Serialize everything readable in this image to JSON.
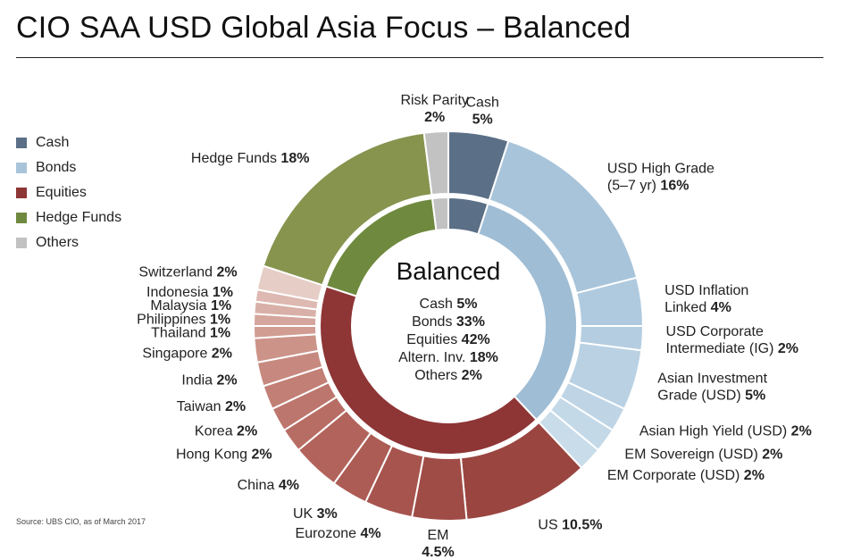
{
  "title": "CIO SAA USD Global Asia Focus – Balanced",
  "source": "Source: UBS CIO, as of March 2017",
  "legend": [
    {
      "label": "Cash",
      "color": "#5b6f86"
    },
    {
      "label": "Bonds",
      "color": "#a8c4da"
    },
    {
      "label": "Equities",
      "color": "#8e3535"
    },
    {
      "label": "Hedge Funds",
      "color": "#6f8a3e"
    },
    {
      "label": "Others",
      "color": "#c2c2c2"
    }
  ],
  "center": {
    "title": "Balanced",
    "lines": [
      {
        "name": "Cash",
        "value": "5%"
      },
      {
        "name": "Bonds",
        "value": "33%"
      },
      {
        "name": "Equities",
        "value": "42%"
      },
      {
        "name": "Altern. Inv.",
        "value": "18%"
      },
      {
        "name": "Others",
        "value": "2%"
      }
    ]
  },
  "chart_data": {
    "type": "pie",
    "inner_ring": [
      {
        "name": "Cash",
        "value": 5,
        "color": "#5b6f86"
      },
      {
        "name": "Bonds",
        "value": 33,
        "color": "#9fbdd4"
      },
      {
        "name": "Equities",
        "value": 42,
        "color": "#8e3535"
      },
      {
        "name": "Hedge Funds",
        "value": 18,
        "color": "#6f8a3e"
      },
      {
        "name": "Others",
        "value": 2,
        "color": "#c2c2c2"
      }
    ],
    "outer_ring": [
      {
        "name": "Cash",
        "label": "Cash",
        "value": 5,
        "value_label": "5%",
        "color": "#5b6f86"
      },
      {
        "name": "USD High Grade (5–7 yr)",
        "label": [
          "USD High Grade",
          "(5–7 yr)"
        ],
        "value": 16,
        "value_label": "16%",
        "color": "#a8c4da"
      },
      {
        "name": "USD Inflation Linked",
        "label": [
          "USD Inflation",
          "Linked"
        ],
        "value": 4,
        "value_label": "4%",
        "color": "#afcadf"
      },
      {
        "name": "USD Corporate Intermediate (IG)",
        "label": [
          "USD Corporate",
          "Intermediate (IG)"
        ],
        "value": 2,
        "value_label": "2%",
        "color": "#b4cde1"
      },
      {
        "name": "Asian Investment Grade (USD)",
        "label": [
          "Asian Investment",
          "Grade (USD)"
        ],
        "value": 5,
        "value_label": "5%",
        "color": "#b9d1e3"
      },
      {
        "name": "Asian High Yield (USD)",
        "label": [
          "Asian High Yield (USD)"
        ],
        "value": 2,
        "value_label": "2%",
        "color": "#bfd5e6"
      },
      {
        "name": "EM Sovereign (USD)",
        "label": [
          "EM Sovereign (USD)"
        ],
        "value": 2,
        "value_label": "2%",
        "color": "#c4d9e8"
      },
      {
        "name": "EM Corporate (USD)",
        "label": [
          "EM Corporate (USD)"
        ],
        "value": 2,
        "value_label": "2%",
        "color": "#c9dcea"
      },
      {
        "name": "US",
        "label": [
          "US"
        ],
        "value": 10.5,
        "value_label": "10.5%",
        "color": "#9a4540"
      },
      {
        "name": "EM",
        "label": [
          "EM"
        ],
        "value": 4.5,
        "value_label": "4.5%",
        "color": "#a04c46"
      },
      {
        "name": "Eurozone",
        "label": [
          "Eurozone"
        ],
        "value": 4,
        "value_label": "4%",
        "color": "#a6544d"
      },
      {
        "name": "UK",
        "label": [
          "UK"
        ],
        "value": 3,
        "value_label": "3%",
        "color": "#ac5c54"
      },
      {
        "name": "China",
        "label": [
          "China"
        ],
        "value": 4,
        "value_label": "4%",
        "color": "#b2645c"
      },
      {
        "name": "Hong Kong",
        "label": [
          "Hong Kong"
        ],
        "value": 2,
        "value_label": "2%",
        "color": "#b86d64"
      },
      {
        "name": "Korea",
        "label": [
          "Korea"
        ],
        "value": 2,
        "value_label": "2%",
        "color": "#bd766d"
      },
      {
        "name": "Taiwan",
        "label": [
          "Taiwan"
        ],
        "value": 2,
        "value_label": "2%",
        "color": "#c27f76"
      },
      {
        "name": "India",
        "label": [
          "India"
        ],
        "value": 2,
        "value_label": "2%",
        "color": "#c7897f"
      },
      {
        "name": "Singapore",
        "label": [
          "Singapore"
        ],
        "value": 2,
        "value_label": "2%",
        "color": "#cc9389"
      },
      {
        "name": "Thailand",
        "label": [
          "Thailand"
        ],
        "value": 1,
        "value_label": "1%",
        "color": "#d19d93"
      },
      {
        "name": "Philippines",
        "label": [
          "Philippines"
        ],
        "value": 1,
        "value_label": "1%",
        "color": "#d5a69d"
      },
      {
        "name": "Malaysia",
        "label": [
          "Malaysia"
        ],
        "value": 1,
        "value_label": "1%",
        "color": "#d9b0a7"
      },
      {
        "name": "Indonesia",
        "label": [
          "Indonesia"
        ],
        "value": 1,
        "value_label": "1%",
        "color": "#ddb9b1"
      },
      {
        "name": "Switzerland",
        "label": [
          "Switzerland"
        ],
        "value": 2,
        "value_label": "2%",
        "color": "#e6cdc5"
      },
      {
        "name": "Hedge Funds",
        "label": [
          "Hedge Funds"
        ],
        "value": 18,
        "value_label": "18%",
        "color": "#86944e"
      },
      {
        "name": "Risk Parity",
        "label": [
          "Risk Parity"
        ],
        "value": 2,
        "value_label": "2%",
        "color": "#c2c2c2"
      }
    ]
  }
}
